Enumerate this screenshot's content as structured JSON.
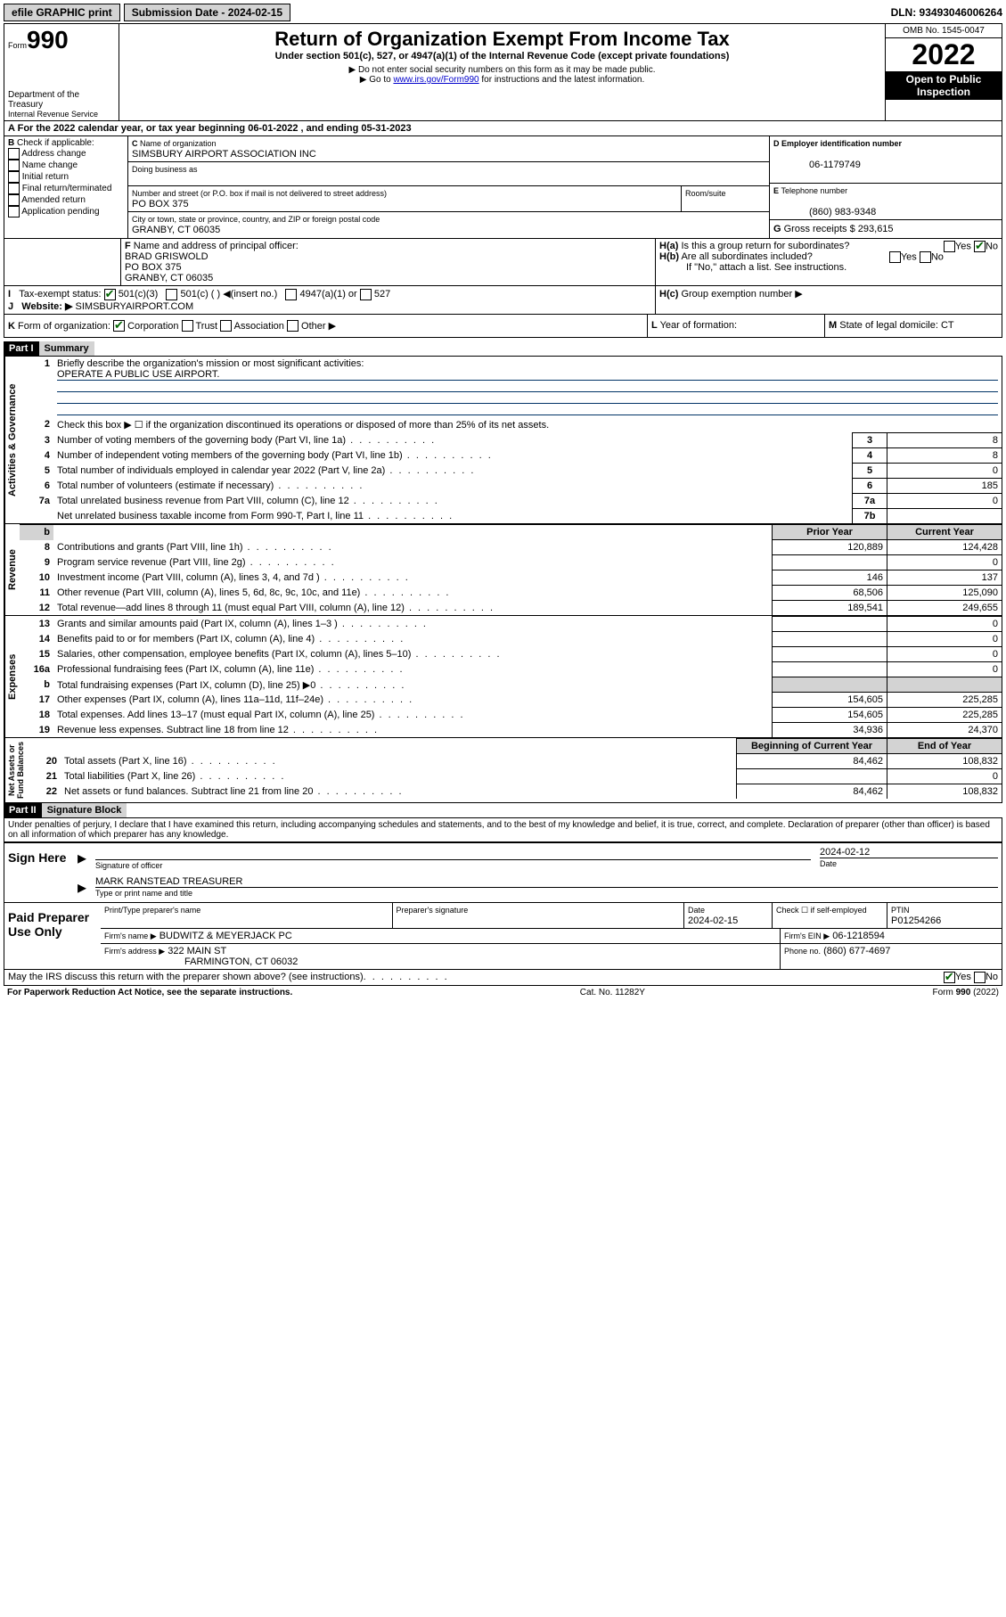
{
  "top": {
    "efile": "efile GRAPHIC print",
    "submission_label": "Submission Date - 2024-02-15",
    "dln": "DLN: 93493046006264"
  },
  "header": {
    "form_label": "Form",
    "form_no": "990",
    "dept": "Department of the Treasury",
    "irs": "Internal Revenue Service",
    "title": "Return of Organization Exempt From Income Tax",
    "subtitle": "Under section 501(c), 527, or 4947(a)(1) of the Internal Revenue Code (except private foundations)",
    "warn1": "▶ Do not enter social security numbers on this form as it may be made public.",
    "warn2_pre": "▶ Go to ",
    "warn2_link": "www.irs.gov/Form990",
    "warn2_post": " for instructions and the latest information.",
    "omb": "OMB No. 1545-0047",
    "year": "2022",
    "open": "Open to Public Inspection"
  },
  "A": {
    "text": "For the 2022 calendar year, or tax year beginning 06-01-2022    , and ending 05-31-2023"
  },
  "B": {
    "label": "Check if applicable:",
    "opts": [
      "Address change",
      "Name change",
      "Initial return",
      "Final return/terminated",
      "Amended return",
      "Application pending"
    ]
  },
  "C": {
    "name_label": "Name of organization",
    "name": "SIMSBURY AIRPORT ASSOCIATION INC",
    "dba_label": "Doing business as",
    "addr_label": "Number and street (or P.O. box if mail is not delivered to street address)",
    "room_label": "Room/suite",
    "addr": "PO BOX 375",
    "city_label": "City or town, state or province, country, and ZIP or foreign postal code",
    "city": "GRANBY, CT  06035"
  },
  "D": {
    "label": "Employer identification number",
    "val": "06-1179749"
  },
  "E": {
    "label": "Telephone number",
    "val": "(860) 983-9348"
  },
  "G": {
    "label": "Gross receipts $",
    "val": "293,615"
  },
  "F": {
    "label": "Name and address of principal officer:",
    "name": "BRAD GRISWOLD",
    "addr1": "PO BOX 375",
    "addr2": "GRANBY, CT  06035"
  },
  "H": {
    "a": "Is this a group return for subordinates?",
    "b": "Are all subordinates included?",
    "b_note": "If \"No,\" attach a list. See instructions.",
    "c": "Group exemption number ▶"
  },
  "I": {
    "label": "Tax-exempt status:",
    "c3": "501(c)(3)",
    "c_other": "501(c) (  ) ◀(insert no.)",
    "a1": "4947(a)(1) or",
    "s527": "527"
  },
  "J": {
    "label": "Website: ▶",
    "val": "SIMSBURYAIRPORT.COM"
  },
  "K": {
    "label": "Form of organization:",
    "opts": [
      "Corporation",
      "Trust",
      "Association",
      "Other ▶"
    ]
  },
  "L": {
    "label": "Year of formation:"
  },
  "M": {
    "label": "State of legal domicile:",
    "val": "CT"
  },
  "part1": {
    "header": "Part I",
    "title": "Summary",
    "q1": "Briefly describe the organization's mission or most significant activities:",
    "mission": "OPERATE A PUBLIC USE AIRPORT.",
    "q2": "Check this box ▶ ☐  if the organization discontinued its operations or disposed of more than 25% of its net assets.",
    "lines_gov": [
      {
        "n": "3",
        "t": "Number of voting members of the governing body (Part VI, line 1a)",
        "b": "3",
        "v": "8"
      },
      {
        "n": "4",
        "t": "Number of independent voting members of the governing body (Part VI, line 1b)",
        "b": "4",
        "v": "8"
      },
      {
        "n": "5",
        "t": "Total number of individuals employed in calendar year 2022 (Part V, line 2a)",
        "b": "5",
        "v": "0"
      },
      {
        "n": "6",
        "t": "Total number of volunteers (estimate if necessary)",
        "b": "6",
        "v": "185"
      },
      {
        "n": "7a",
        "t": "Total unrelated business revenue from Part VIII, column (C), line 12",
        "b": "7a",
        "v": "0"
      },
      {
        "n": "",
        "t": "Net unrelated business taxable income from Form 990-T, Part I, line 11",
        "b": "7b",
        "v": ""
      }
    ],
    "col_prior": "Prior Year",
    "col_current": "Current Year",
    "col_begin": "Beginning of Current Year",
    "col_end": "End of Year",
    "rev": [
      {
        "n": "8",
        "t": "Contributions and grants (Part VIII, line 1h)",
        "p": "120,889",
        "c": "124,428"
      },
      {
        "n": "9",
        "t": "Program service revenue (Part VIII, line 2g)",
        "p": "",
        "c": "0"
      },
      {
        "n": "10",
        "t": "Investment income (Part VIII, column (A), lines 3, 4, and 7d )",
        "p": "146",
        "c": "137"
      },
      {
        "n": "11",
        "t": "Other revenue (Part VIII, column (A), lines 5, 6d, 8c, 9c, 10c, and 11e)",
        "p": "68,506",
        "c": "125,090"
      },
      {
        "n": "12",
        "t": "Total revenue—add lines 8 through 11 (must equal Part VIII, column (A), line 12)",
        "p": "189,541",
        "c": "249,655"
      }
    ],
    "exp": [
      {
        "n": "13",
        "t": "Grants and similar amounts paid (Part IX, column (A), lines 1–3 )",
        "p": "",
        "c": "0"
      },
      {
        "n": "14",
        "t": "Benefits paid to or for members (Part IX, column (A), line 4)",
        "p": "",
        "c": "0"
      },
      {
        "n": "15",
        "t": "Salaries, other compensation, employee benefits (Part IX, column (A), lines 5–10)",
        "p": "",
        "c": "0"
      },
      {
        "n": "16a",
        "t": "Professional fundraising fees (Part IX, column (A), line 11e)",
        "p": "",
        "c": "0"
      },
      {
        "n": "b",
        "t": "Total fundraising expenses (Part IX, column (D), line 25) ▶0",
        "p": "GRAY",
        "c": "GRAY"
      },
      {
        "n": "17",
        "t": "Other expenses (Part IX, column (A), lines 11a–11d, 11f–24e)",
        "p": "154,605",
        "c": "225,285"
      },
      {
        "n": "18",
        "t": "Total expenses. Add lines 13–17 (must equal Part IX, column (A), line 25)",
        "p": "154,605",
        "c": "225,285"
      },
      {
        "n": "19",
        "t": "Revenue less expenses. Subtract line 18 from line 12",
        "p": "34,936",
        "c": "24,370"
      }
    ],
    "net": [
      {
        "n": "20",
        "t": "Total assets (Part X, line 16)",
        "p": "84,462",
        "c": "108,832"
      },
      {
        "n": "21",
        "t": "Total liabilities (Part X, line 26)",
        "p": "",
        "c": "0"
      },
      {
        "n": "22",
        "t": "Net assets or fund balances. Subtract line 21 from line 20",
        "p": "84,462",
        "c": "108,832"
      }
    ]
  },
  "part2": {
    "header": "Part II",
    "title": "Signature Block",
    "declaration": "Under penalties of perjury, I declare that I have examined this return, including accompanying schedules and statements, and to the best of my knowledge and belief, it is true, correct, and complete. Declaration of preparer (other than officer) is based on all information of which preparer has any knowledge.",
    "sign_here": "Sign Here",
    "sig_officer": "Signature of officer",
    "sig_date": "2024-02-12",
    "date_label": "Date",
    "officer_name": "MARK RANSTEAD TREASURER",
    "type_name": "Type or print name and title",
    "paid": "Paid Preparer Use Only",
    "prep_name_label": "Print/Type preparer's name",
    "prep_sig_label": "Preparer's signature",
    "prep_date_label": "Date",
    "prep_date": "2024-02-15",
    "check_self": "Check ☐ if self-employed",
    "ptin_label": "PTIN",
    "ptin": "P01254266",
    "firm_name_label": "Firm's name    ▶",
    "firm_name": "BUDWITZ & MEYERJACK PC",
    "firm_ein_label": "Firm's EIN ▶",
    "firm_ein": "06-1218594",
    "firm_addr_label": "Firm's address ▶",
    "firm_addr1": "322 MAIN ST",
    "firm_addr2": "FARMINGTON, CT  06032",
    "phone_label": "Phone no.",
    "phone": "(860) 677-4697",
    "discuss": "May the IRS discuss this return with the preparer shown above? (see instructions)",
    "yes": "Yes",
    "no": "No"
  },
  "footer": {
    "left": "For Paperwork Reduction Act Notice, see the separate instructions.",
    "mid": "Cat. No. 11282Y",
    "right": "Form 990 (2022)"
  }
}
